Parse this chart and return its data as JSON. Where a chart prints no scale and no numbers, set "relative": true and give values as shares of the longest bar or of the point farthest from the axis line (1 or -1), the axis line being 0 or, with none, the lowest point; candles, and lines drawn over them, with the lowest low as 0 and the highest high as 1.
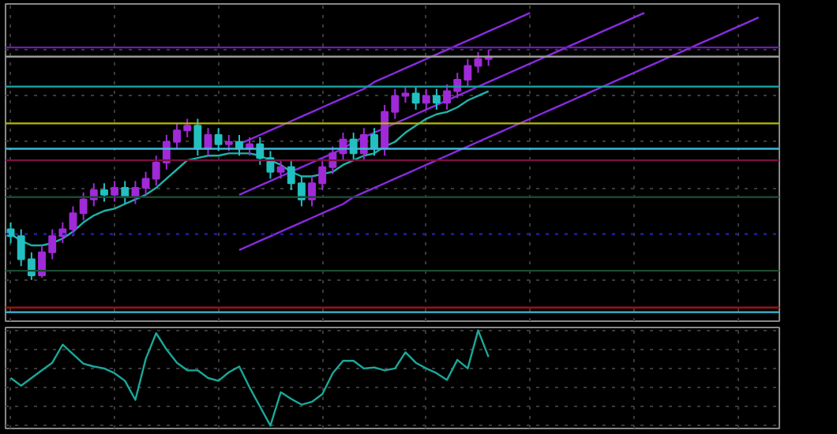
{
  "chart_data": [
    {
      "type": "candlestick",
      "relative": true,
      "grid": true,
      "categories": [
        null,
        null,
        null,
        null,
        null,
        null,
        null,
        null,
        null,
        null,
        null,
        null,
        null,
        null,
        null,
        null,
        null,
        null,
        null,
        null,
        null,
        null,
        null,
        null,
        null,
        null,
        null,
        null,
        null,
        null,
        null,
        null,
        null,
        null,
        null,
        null,
        null,
        null,
        null,
        null,
        null,
        null,
        null,
        null,
        null,
        null,
        null,
        null,
        null,
        null,
        null,
        null,
        null,
        null,
        null,
        null,
        null,
        null,
        null,
        null,
        null,
        null,
        null,
        null,
        null,
        null,
        null,
        null,
        null,
        null,
        null,
        null,
        null
      ],
      "ohlc": [
        [
          0.22,
          0.25,
          0.16,
          0.19
        ],
        [
          0.19,
          0.22,
          0.06,
          0.09
        ],
        [
          0.09,
          0.12,
          0.0,
          0.02
        ],
        [
          0.02,
          0.15,
          0.01,
          0.12
        ],
        [
          0.12,
          0.22,
          0.09,
          0.19
        ],
        [
          0.19,
          0.25,
          0.16,
          0.22
        ],
        [
          0.22,
          0.32,
          0.19,
          0.29
        ],
        [
          0.29,
          0.38,
          0.26,
          0.35
        ],
        [
          0.35,
          0.42,
          0.32,
          0.39
        ],
        [
          0.39,
          0.42,
          0.34,
          0.37
        ],
        [
          0.37,
          0.43,
          0.34,
          0.4
        ],
        [
          0.4,
          0.43,
          0.33,
          0.36
        ],
        [
          0.36,
          0.43,
          0.33,
          0.4
        ],
        [
          0.4,
          0.47,
          0.37,
          0.44
        ],
        [
          0.44,
          0.54,
          0.41,
          0.51
        ],
        [
          0.51,
          0.63,
          0.48,
          0.6
        ],
        [
          0.6,
          0.68,
          0.57,
          0.65
        ],
        [
          0.65,
          0.7,
          0.62,
          0.67
        ],
        [
          0.67,
          0.7,
          0.54,
          0.57
        ],
        [
          0.57,
          0.66,
          0.54,
          0.63
        ],
        [
          0.63,
          0.66,
          0.56,
          0.59
        ],
        [
          0.59,
          0.63,
          0.56,
          0.6
        ],
        [
          0.6,
          0.63,
          0.54,
          0.57
        ],
        [
          0.57,
          0.62,
          0.54,
          0.59
        ],
        [
          0.59,
          0.62,
          0.5,
          0.53
        ],
        [
          0.53,
          0.56,
          0.44,
          0.47
        ],
        [
          0.47,
          0.52,
          0.44,
          0.49
        ],
        [
          0.49,
          0.52,
          0.39,
          0.42
        ],
        [
          0.42,
          0.45,
          0.32,
          0.35
        ],
        [
          0.35,
          0.45,
          0.32,
          0.42
        ],
        [
          0.42,
          0.52,
          0.39,
          0.49
        ],
        [
          0.49,
          0.58,
          0.46,
          0.55
        ],
        [
          0.55,
          0.64,
          0.52,
          0.61
        ],
        [
          0.61,
          0.64,
          0.52,
          0.55
        ],
        [
          0.55,
          0.66,
          0.52,
          0.63
        ],
        [
          0.63,
          0.66,
          0.54,
          0.57
        ],
        [
          0.57,
          0.76,
          0.54,
          0.73
        ],
        [
          0.73,
          0.83,
          0.7,
          0.8
        ],
        [
          0.8,
          0.84,
          0.77,
          0.81
        ],
        [
          0.81,
          0.84,
          0.74,
          0.77
        ],
        [
          0.77,
          0.83,
          0.74,
          0.8
        ],
        [
          0.8,
          0.83,
          0.74,
          0.77
        ],
        [
          0.77,
          0.85,
          0.74,
          0.82
        ],
        [
          0.82,
          0.9,
          0.79,
          0.87
        ],
        [
          0.87,
          0.96,
          0.84,
          0.93
        ],
        [
          0.93,
          0.99,
          0.9,
          0.96
        ],
        [
          0.96,
          1.0,
          0.93,
          0.97
        ],
        null,
        null,
        null,
        null,
        null,
        null,
        null,
        null,
        null,
        null,
        null,
        null,
        null,
        null,
        null,
        null,
        null,
        null,
        null,
        null,
        null,
        null,
        null,
        null,
        null,
        null
      ],
      "series": [
        {
          "type": "line",
          "color": "#20b2aa",
          "values": [
            0.2,
            0.17,
            0.15,
            0.15,
            0.16,
            0.18,
            0.21,
            0.25,
            0.28,
            0.3,
            0.31,
            0.33,
            0.35,
            0.37,
            0.4,
            0.44,
            0.48,
            0.52,
            0.53,
            0.54,
            0.54,
            0.55,
            0.55,
            0.55,
            0.54,
            0.52,
            0.5,
            0.47,
            0.45,
            0.45,
            0.46,
            0.47,
            0.5,
            0.52,
            0.54,
            0.55,
            0.58,
            0.6,
            0.64,
            0.67,
            0.7,
            0.72,
            0.73,
            0.75,
            0.78,
            0.8,
            0.82,
            null,
            null,
            null,
            null,
            null,
            null,
            null,
            null,
            null,
            null,
            null,
            null,
            null,
            null,
            null,
            null,
            null,
            null,
            null,
            null,
            null,
            null,
            null,
            null,
            null,
            null
          ]
        },
        {
          "type": "line",
          "color": "#8a2be2",
          "values": [
            null,
            null,
            null,
            null,
            null,
            null,
            null,
            null,
            null,
            null,
            null,
            null,
            null,
            null,
            null,
            null,
            null,
            null,
            null,
            null,
            null,
            null,
            0.59,
            0.61,
            0.63,
            0.65,
            0.67,
            0.69,
            0.71,
            0.73,
            0.75,
            0.77,
            0.79,
            0.81,
            0.83,
            0.86,
            0.88,
            0.9,
            0.92,
            0.94,
            0.96,
            0.98,
            1.0,
            1.02,
            1.04,
            1.06,
            1.08,
            1.1,
            1.12,
            1.14,
            1.16,
            null,
            null,
            null,
            null,
            null,
            null,
            null,
            null,
            null,
            null,
            null,
            null,
            null,
            null,
            null,
            null,
            null,
            null,
            null,
            null,
            null,
            null
          ]
        },
        {
          "type": "line",
          "color": "#8a2be2",
          "values": [
            null,
            null,
            null,
            null,
            null,
            null,
            null,
            null,
            null,
            null,
            null,
            null,
            null,
            null,
            null,
            null,
            null,
            null,
            null,
            null,
            null,
            null,
            0.37,
            0.39,
            0.41,
            0.43,
            0.45,
            0.47,
            0.49,
            0.51,
            0.53,
            0.55,
            0.57,
            0.6,
            0.62,
            0.64,
            0.66,
            0.68,
            0.7,
            0.72,
            0.74,
            0.76,
            0.78,
            0.8,
            0.82,
            0.84,
            0.86,
            0.88,
            0.9,
            0.92,
            0.94,
            0.96,
            0.98,
            1.0,
            1.02,
            1.04,
            1.06,
            1.08,
            1.1,
            1.12,
            1.14,
            1.16,
            null,
            null,
            null,
            null,
            null,
            null,
            null,
            null,
            null,
            null,
            null
          ]
        },
        {
          "type": "line",
          "color": "#8a2be2",
          "values": [
            null,
            null,
            null,
            null,
            null,
            null,
            null,
            null,
            null,
            null,
            null,
            null,
            null,
            null,
            null,
            null,
            null,
            null,
            null,
            null,
            null,
            null,
            0.13,
            0.15,
            0.17,
            0.19,
            0.21,
            0.23,
            0.25,
            0.27,
            0.29,
            0.31,
            0.33,
            0.36,
            0.38,
            0.4,
            0.42,
            0.44,
            0.46,
            0.48,
            0.5,
            0.52,
            0.54,
            0.56,
            0.58,
            0.6,
            0.62,
            0.64,
            0.66,
            0.68,
            0.7,
            0.72,
            0.74,
            0.76,
            0.78,
            0.8,
            0.82,
            0.84,
            0.86,
            0.88,
            0.9,
            0.92,
            0.94,
            0.96,
            0.98,
            1.0,
            1.02,
            1.04,
            1.06,
            1.08,
            1.1,
            1.12,
            1.14
          ]
        }
      ],
      "ref_lines": [
        {
          "axis": "y",
          "value": 1.01,
          "color": "#6a1fb0"
        },
        {
          "axis": "y",
          "value": 0.97,
          "color": "#9a9a9a"
        },
        {
          "axis": "y",
          "value": 0.84,
          "color": "#1a9a9a"
        },
        {
          "axis": "y",
          "value": 0.68,
          "color": "#b8b800"
        },
        {
          "axis": "y",
          "value": 0.57,
          "color": "#3fb8d8"
        },
        {
          "axis": "y",
          "value": 0.52,
          "color": "#7a1040"
        },
        {
          "axis": "y",
          "value": 0.36,
          "color": "#1a4a30"
        },
        {
          "axis": "y",
          "value": 0.2,
          "color": "#1a1aa0",
          "line_style": "dotted"
        },
        {
          "axis": "y",
          "value": 0.04,
          "color": "#1a4a30"
        },
        {
          "axis": "y",
          "value": -0.12,
          "color": "#a01010"
        },
        {
          "axis": "y",
          "value": -0.14,
          "color": "#3fb8d8"
        }
      ]
    },
    {
      "type": "line",
      "relative": true,
      "grid": true,
      "color": "#1aa89a",
      "categories": [
        null,
        null,
        null,
        null,
        null,
        null,
        null,
        null,
        null,
        null,
        null,
        null,
        null,
        null,
        null,
        null,
        null,
        null,
        null,
        null,
        null,
        null,
        null,
        null,
        null,
        null,
        null,
        null,
        null,
        null,
        null,
        null,
        null,
        null,
        null,
        null,
        null,
        null,
        null,
        null,
        null,
        null,
        null,
        null,
        null,
        null,
        null,
        null,
        null,
        null,
        null,
        null,
        null,
        null,
        null,
        null,
        null,
        null,
        null,
        null,
        null,
        null,
        null,
        null,
        null,
        null,
        null,
        null,
        null,
        null,
        null,
        null,
        null
      ],
      "values": [
        0.5,
        0.42,
        0.5,
        0.58,
        0.66,
        0.85,
        0.75,
        0.65,
        0.62,
        0.6,
        0.55,
        0.47,
        0.27,
        0.7,
        0.97,
        0.8,
        0.66,
        0.58,
        0.58,
        0.5,
        0.47,
        0.56,
        0.62,
        0.4,
        0.2,
        0.0,
        0.35,
        0.28,
        0.22,
        0.25,
        0.33,
        0.55,
        0.68,
        0.68,
        0.6,
        0.61,
        0.58,
        0.6,
        0.77,
        0.66,
        0.6,
        0.55,
        0.48,
        0.69,
        0.6,
        1.0,
        0.72,
        null,
        null,
        null,
        null,
        null,
        null,
        null,
        null,
        null,
        null,
        null,
        null,
        null,
        null,
        null,
        null,
        null,
        null,
        null,
        null,
        null,
        null,
        null,
        null,
        null,
        null
      ]
    }
  ]
}
